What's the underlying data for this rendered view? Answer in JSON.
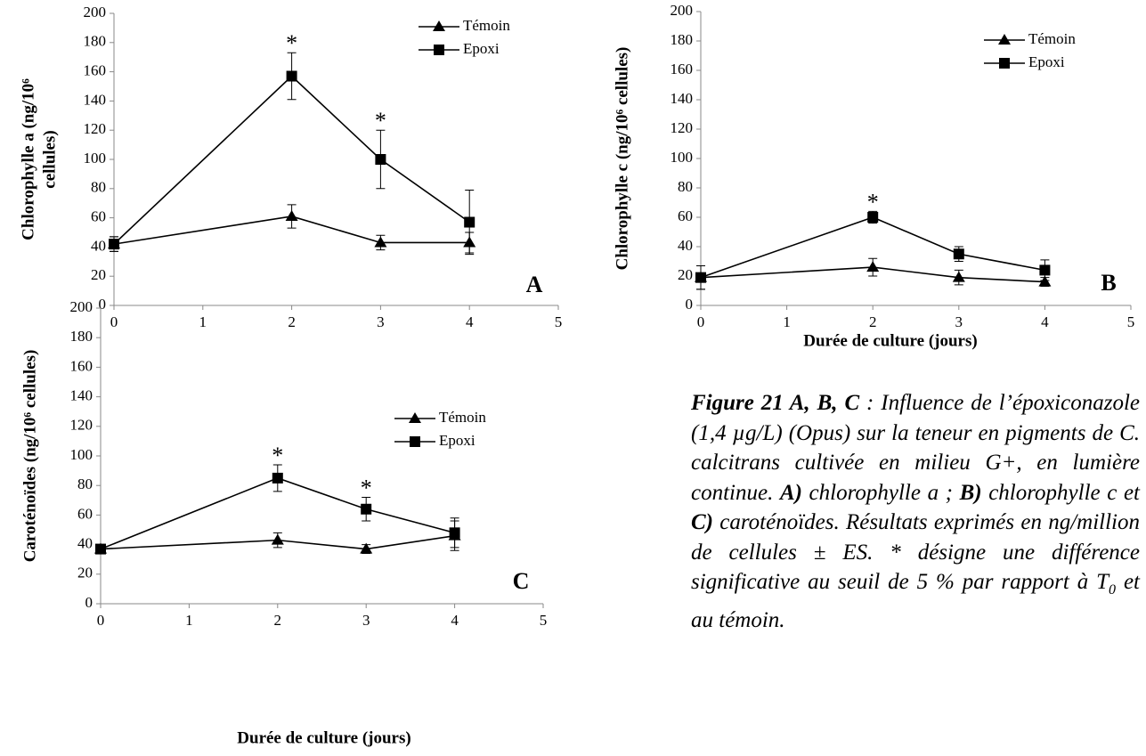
{
  "chart_data": [
    {
      "type": "line",
      "label": "A",
      "ylabel": [
        "Chlorophylle a (ng/10⁶",
        "cellules)"
      ],
      "x": [
        0,
        2,
        3,
        4
      ],
      "xlim": [
        0,
        5
      ],
      "xticks": [
        0,
        1,
        2,
        3,
        4,
        5
      ],
      "ylim": [
        0,
        200
      ],
      "yticks": [
        0,
        20,
        40,
        60,
        80,
        100,
        120,
        140,
        160,
        180,
        200
      ],
      "legend": "upper right",
      "series": [
        {
          "name": "Témoin",
          "color": "#000000",
          "marker": "triangle",
          "values": [
            42,
            61,
            43,
            43
          ],
          "errors": [
            5,
            8,
            5,
            7
          ]
        },
        {
          "name": "Epoxi",
          "color": "#000000",
          "marker": "square",
          "values": [
            42,
            157,
            100,
            57
          ],
          "errors": [
            5,
            16,
            20,
            22
          ]
        }
      ],
      "significance": [
        {
          "x": 2,
          "text": "*"
        },
        {
          "x": 3,
          "text": "*"
        }
      ]
    },
    {
      "type": "line",
      "label": "B",
      "ylabel": [
        "Chlorophylle c (ng/10⁶ cellules)"
      ],
      "xlabel": "Durée de culture (jours)",
      "x": [
        0,
        2,
        3,
        4
      ],
      "xlim": [
        0,
        5
      ],
      "xticks": [
        0,
        1,
        2,
        3,
        4,
        5
      ],
      "ylim": [
        0,
        200
      ],
      "yticks": [
        0,
        20,
        40,
        60,
        80,
        100,
        120,
        140,
        160,
        180,
        200
      ],
      "legend": "upper right",
      "series": [
        {
          "name": "Témoin",
          "color": "#000000",
          "marker": "triangle",
          "values": [
            19,
            26,
            19,
            16
          ],
          "errors": [
            8,
            6,
            5,
            3
          ]
        },
        {
          "name": "Epoxi",
          "color": "#000000",
          "marker": "square",
          "values": [
            19,
            60,
            35,
            24
          ],
          "errors": [
            8,
            4,
            5,
            7
          ]
        }
      ],
      "significance": [
        {
          "x": 2,
          "text": "*"
        }
      ]
    },
    {
      "type": "line",
      "label": "C",
      "ylabel": [
        "Caroténoïdes (ng/10⁶ cellules)"
      ],
      "xlabel": "Durée de culture (jours)",
      "x": [
        0,
        2,
        3,
        4
      ],
      "xlim": [
        0,
        5
      ],
      "xticks": [
        0,
        1,
        2,
        3,
        4,
        5
      ],
      "ylim": [
        0,
        200
      ],
      "yticks": [
        0,
        20,
        40,
        60,
        80,
        100,
        120,
        140,
        160,
        180,
        200
      ],
      "legend": "upper right",
      "series": [
        {
          "name": "Témoin",
          "color": "#000000",
          "marker": "triangle",
          "values": [
            37,
            43,
            37,
            46
          ],
          "errors": [
            3,
            5,
            3,
            10
          ]
        },
        {
          "name": "Epoxi",
          "color": "#000000",
          "marker": "square",
          "values": [
            37,
            85,
            64,
            48
          ],
          "errors": [
            3,
            9,
            8,
            10
          ]
        }
      ],
      "significance": [
        {
          "x": 2,
          "text": "*"
        },
        {
          "x": 3,
          "text": "*"
        }
      ]
    }
  ],
  "caption": {
    "parts": [
      {
        "text": "Figure 21 A, B, C",
        "style": "bold"
      },
      {
        "text": " : Influence de l’époxiconazole (1,4 µg/L) (Opus) sur la teneur en pigments de C. calcitrans cultivée en milieu G+, en lumière continue. ",
        "style": "normal"
      },
      {
        "text": "A)",
        "style": "bold"
      },
      {
        "text": " chlorophylle a ; ",
        "style": "normal"
      },
      {
        "text": "B)",
        "style": "bold"
      },
      {
        "text": " chlorophylle c et ",
        "style": "normal"
      },
      {
        "text": "C)",
        "style": "bold"
      },
      {
        "text": " caroténoïdes. Résultats exprimés en ng/million de cellules ± ES.  * désigne une différence significative au seuil de 5 % par rapport à T",
        "style": "normal"
      },
      {
        "text": "0",
        "style": "sub"
      },
      {
        "text": " et au témoin.",
        "style": "normal"
      }
    ]
  }
}
